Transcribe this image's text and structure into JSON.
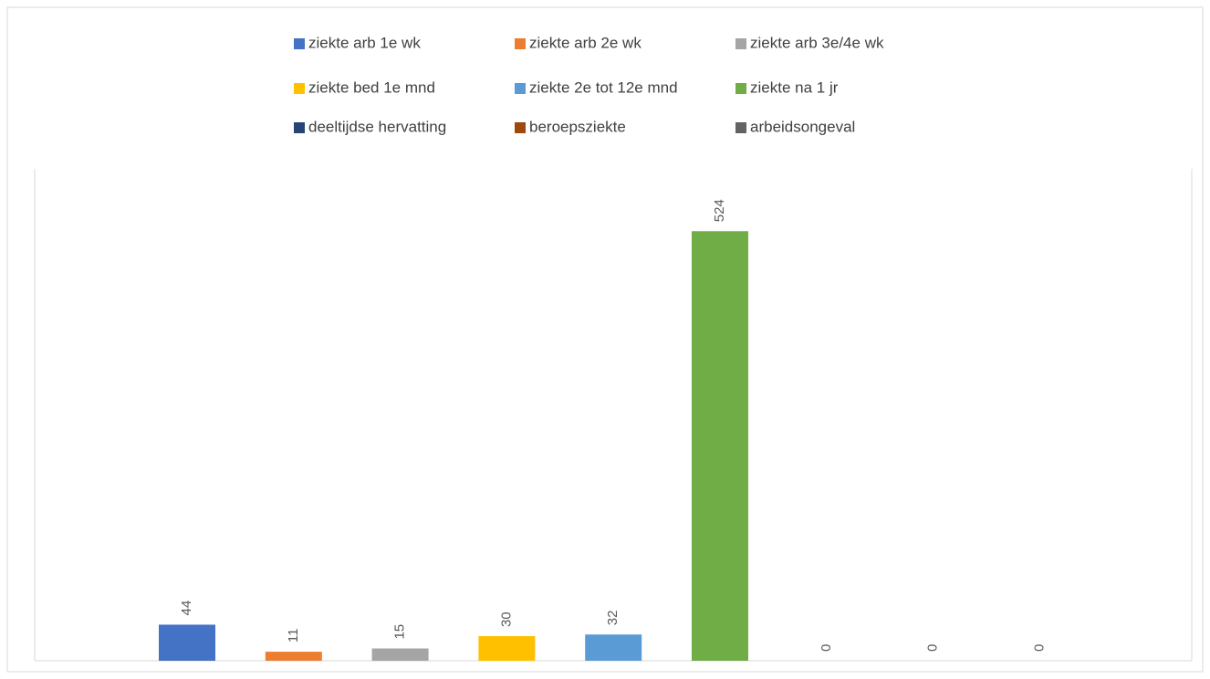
{
  "chart_data": {
    "type": "bar",
    "series": [
      {
        "name": "ziekte arb 1e wk",
        "color": "#4472c4",
        "values": [
          44
        ]
      },
      {
        "name": "ziekte arb 2e wk",
        "color": "#ed7d31",
        "values": [
          11
        ]
      },
      {
        "name": "ziekte arb 3e/4e wk",
        "color": "#a5a5a5",
        "values": [
          15
        ]
      },
      {
        "name": "ziekte bed 1e mnd",
        "color": "#ffc000",
        "values": [
          30
        ]
      },
      {
        "name": "ziekte 2e tot 12e mnd",
        "color": "#5b9bd5",
        "values": [
          32
        ]
      },
      {
        "name": "ziekte na 1 jr",
        "color": "#70ad47",
        "values": [
          524
        ]
      },
      {
        "name": "deeltijdse hervatting",
        "color": "#264478",
        "values": [
          0
        ]
      },
      {
        "name": "beroepsziekte",
        "color": "#9e480e",
        "values": [
          0
        ]
      },
      {
        "name": "arbeidsongeval",
        "color": "#636363",
        "values": [
          0
        ]
      }
    ],
    "ylim": [
      0,
      600
    ],
    "legend": "top"
  }
}
